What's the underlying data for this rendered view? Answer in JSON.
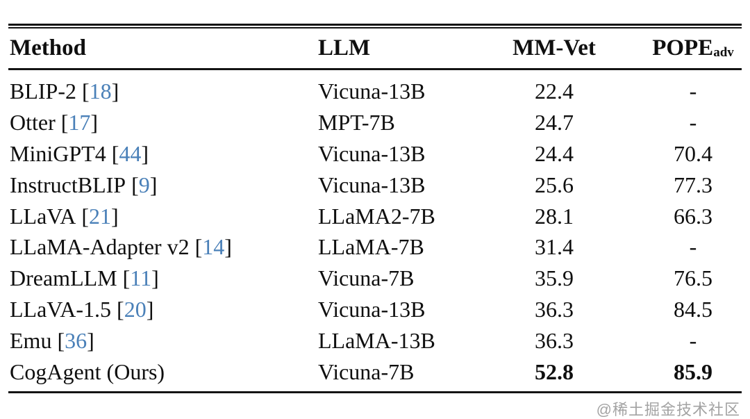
{
  "table": {
    "columns": [
      {
        "label": "Method"
      },
      {
        "label": "LLM"
      },
      {
        "label": "MM-Vet"
      },
      {
        "label": "POPE",
        "subscript": "adv"
      }
    ],
    "citation_brackets": [
      "[",
      "]"
    ],
    "rows": [
      {
        "method": "BLIP-2",
        "cite": "18",
        "llm": "Vicuna-13B",
        "mmvet": "22.4",
        "pope": "-",
        "values_bold": false
      },
      {
        "method": "Otter",
        "cite": "17",
        "llm": "MPT-7B",
        "mmvet": "24.7",
        "pope": "-",
        "values_bold": false
      },
      {
        "method": "MiniGPT4",
        "cite": "44",
        "llm": "Vicuna-13B",
        "mmvet": "24.4",
        "pope": "70.4",
        "values_bold": false
      },
      {
        "method": "InstructBLIP",
        "cite": "9",
        "llm": "Vicuna-13B",
        "mmvet": "25.6",
        "pope": "77.3",
        "values_bold": false
      },
      {
        "method": "LLaVA",
        "cite": "21",
        "llm": "LLaMA2-7B",
        "mmvet": "28.1",
        "pope": "66.3",
        "values_bold": false
      },
      {
        "method": "LLaMA-Adapter v2",
        "cite": "14",
        "llm": "LLaMA-7B",
        "mmvet": "31.4",
        "pope": "-",
        "values_bold": false
      },
      {
        "method": "DreamLLM",
        "cite": "11",
        "llm": "Vicuna-7B",
        "mmvet": "35.9",
        "pope": "76.5",
        "values_bold": false
      },
      {
        "method": "LLaVA-1.5",
        "cite": "20",
        "llm": "Vicuna-13B",
        "mmvet": "36.3",
        "pope": "84.5",
        "values_bold": false
      },
      {
        "method": "Emu",
        "cite": "36",
        "llm": "LLaMA-13B",
        "mmvet": "36.3",
        "pope": "-",
        "values_bold": false
      },
      {
        "method": "CogAgent (Ours)",
        "cite": null,
        "llm": "Vicuna-7B",
        "mmvet": "52.8",
        "pope": "85.9",
        "values_bold": true
      }
    ]
  },
  "watermark": "@稀土掘金技术社区",
  "colors": {
    "text": "#0f0f0f",
    "citation": "#4a80b8",
    "watermark": "#a3a3a3"
  }
}
